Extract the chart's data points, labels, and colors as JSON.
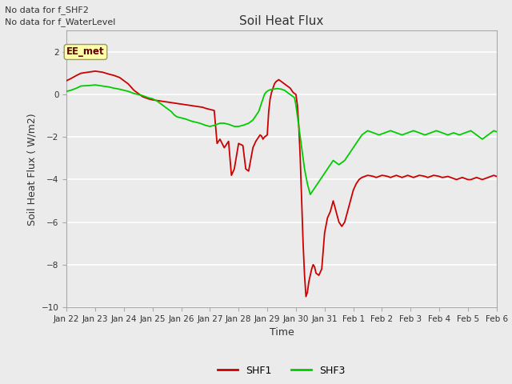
{
  "title": "Soil Heat Flux",
  "xlabel": "Time",
  "ylabel": "Soil Heat Flux ( W/m2)",
  "ylim": [
    -10,
    3
  ],
  "yticks": [
    -10,
    -8,
    -6,
    -4,
    -2,
    0,
    2
  ],
  "top_text": [
    "No data for f_SHF2",
    "No data for f_WaterLevel"
  ],
  "box_text": "EE_met",
  "bg_color": "#ebebeb",
  "shf1_color": "#cc0000",
  "shf3_color": "#00cc00",
  "xtick_labels": [
    "Jan 22",
    "Jan 23",
    "Jan 24",
    "Jan 25",
    "Jan 26",
    "Jan 27",
    "Jan 28",
    "Jan 29",
    "Jan 30",
    "Jan 31",
    "Feb 1",
    "Feb 2",
    "Feb 3",
    "Feb 4",
    "Feb 5",
    "Feb 6"
  ],
  "shf1_t": [
    0.0,
    0.15,
    0.35,
    0.5,
    0.75,
    1.0,
    1.25,
    1.5,
    1.65,
    1.85,
    2.0,
    2.15,
    2.25,
    2.35,
    2.5,
    2.65,
    2.75,
    2.85,
    3.0,
    3.15,
    3.25,
    3.35,
    3.5,
    3.65,
    3.75,
    3.85,
    4.0,
    4.15,
    4.25,
    4.35,
    4.5,
    4.65,
    4.75,
    4.85,
    5.0,
    5.15,
    5.25,
    5.35,
    5.5,
    5.65,
    5.75,
    5.85,
    6.0,
    6.15,
    6.25,
    6.35,
    6.5,
    6.6,
    6.7,
    6.75,
    6.8,
    6.85,
    6.9,
    6.95,
    7.0,
    7.05,
    7.1,
    7.15,
    7.2,
    7.25,
    7.3,
    7.35,
    7.4,
    7.45,
    7.5,
    7.55,
    7.6,
    7.65,
    7.7,
    7.75,
    7.8,
    7.85,
    7.9,
    7.95,
    8.0,
    8.05,
    8.1,
    8.15,
    8.2,
    8.25,
    8.3,
    8.35,
    8.4,
    8.45,
    8.5,
    8.55,
    8.6,
    8.65,
    8.7,
    8.8,
    8.9,
    9.0,
    9.1,
    9.2,
    9.3,
    9.4,
    9.5,
    9.6,
    9.7,
    9.8,
    9.9,
    10.0,
    10.1,
    10.2,
    10.3,
    10.4,
    10.5,
    10.6,
    10.7,
    10.8,
    10.9,
    11.0,
    11.1,
    11.2,
    11.3,
    11.4,
    11.5,
    11.6,
    11.7,
    11.8,
    11.9,
    12.0,
    12.1,
    12.2,
    12.3,
    12.4,
    12.5,
    12.6,
    12.7,
    12.8,
    12.9,
    13.0,
    13.1,
    13.2,
    13.3,
    13.4,
    13.5,
    13.6,
    13.7,
    13.8,
    13.9,
    14.0,
    14.1,
    14.2,
    14.3,
    14.4,
    14.5,
    14.6,
    14.7,
    14.8,
    14.9,
    15.0
  ],
  "shf1_y": [
    0.65,
    0.75,
    0.9,
    1.0,
    1.05,
    1.1,
    1.05,
    0.95,
    0.9,
    0.8,
    0.65,
    0.5,
    0.35,
    0.2,
    0.05,
    -0.1,
    -0.15,
    -0.2,
    -0.25,
    -0.28,
    -0.3,
    -0.32,
    -0.35,
    -0.38,
    -0.4,
    -0.42,
    -0.45,
    -0.48,
    -0.5,
    -0.52,
    -0.55,
    -0.58,
    -0.6,
    -0.65,
    -0.7,
    -0.75,
    -2.3,
    -2.1,
    -2.5,
    -2.2,
    -3.8,
    -3.5,
    -2.3,
    -2.4,
    -3.5,
    -3.6,
    -2.5,
    -2.2,
    -2.0,
    -1.9,
    -1.95,
    -2.1,
    -2.0,
    -1.95,
    -1.9,
    -0.8,
    -0.2,
    0.1,
    0.3,
    0.5,
    0.6,
    0.65,
    0.7,
    0.65,
    0.6,
    0.55,
    0.5,
    0.45,
    0.4,
    0.35,
    0.3,
    0.2,
    0.1,
    0.05,
    0.0,
    -0.5,
    -1.5,
    -3.0,
    -5.0,
    -7.0,
    -8.5,
    -9.5,
    -9.3,
    -8.8,
    -8.5,
    -8.2,
    -8.0,
    -8.1,
    -8.4,
    -8.5,
    -8.2,
    -6.5,
    -5.8,
    -5.5,
    -5.0,
    -5.5,
    -6.0,
    -6.2,
    -6.0,
    -5.5,
    -5.0,
    -4.5,
    -4.2,
    -4.0,
    -3.9,
    -3.85,
    -3.8,
    -3.82,
    -3.85,
    -3.9,
    -3.85,
    -3.8,
    -3.82,
    -3.85,
    -3.9,
    -3.85,
    -3.8,
    -3.85,
    -3.9,
    -3.85,
    -3.8,
    -3.85,
    -3.9,
    -3.85,
    -3.8,
    -3.82,
    -3.85,
    -3.9,
    -3.85,
    -3.8,
    -3.82,
    -3.85,
    -3.9,
    -3.88,
    -3.85,
    -3.9,
    -3.95,
    -4.0,
    -3.95,
    -3.9,
    -3.95,
    -4.0,
    -4.0,
    -3.95,
    -3.9,
    -3.95,
    -4.0,
    -3.95,
    -3.9,
    -3.85,
    -3.8,
    -3.85
  ],
  "shf3_t": [
    0.0,
    0.15,
    0.35,
    0.5,
    0.75,
    1.0,
    1.25,
    1.5,
    1.65,
    1.85,
    2.0,
    2.15,
    2.25,
    2.35,
    2.5,
    2.65,
    2.75,
    2.85,
    3.0,
    3.15,
    3.25,
    3.35,
    3.5,
    3.65,
    3.75,
    3.85,
    4.0,
    4.15,
    4.25,
    4.35,
    4.5,
    4.65,
    4.75,
    4.85,
    5.0,
    5.15,
    5.25,
    5.35,
    5.5,
    5.65,
    5.75,
    5.85,
    6.0,
    6.15,
    6.25,
    6.35,
    6.5,
    6.6,
    6.7,
    6.75,
    6.8,
    6.85,
    6.9,
    6.95,
    7.0,
    7.05,
    7.1,
    7.15,
    7.2,
    7.25,
    7.3,
    7.35,
    7.4,
    7.45,
    7.5,
    7.55,
    7.6,
    7.65,
    7.7,
    7.75,
    7.8,
    7.85,
    7.9,
    7.95,
    8.0,
    8.1,
    8.2,
    8.3,
    8.4,
    8.5,
    8.6,
    8.7,
    8.8,
    8.9,
    9.0,
    9.1,
    9.2,
    9.3,
    9.4,
    9.5,
    9.6,
    9.7,
    9.8,
    9.9,
    10.0,
    10.1,
    10.2,
    10.3,
    10.4,
    10.5,
    10.6,
    10.7,
    10.8,
    10.9,
    11.0,
    11.1,
    11.2,
    11.3,
    11.4,
    11.5,
    11.6,
    11.7,
    11.8,
    11.9,
    12.0,
    12.1,
    12.2,
    12.3,
    12.4,
    12.5,
    12.6,
    12.7,
    12.8,
    12.9,
    13.0,
    13.1,
    13.2,
    13.3,
    13.4,
    13.5,
    13.6,
    13.7,
    13.8,
    13.9,
    14.0,
    14.1,
    14.2,
    14.3,
    14.4,
    14.5,
    14.6,
    14.7,
    14.8,
    14.9,
    15.0
  ],
  "shf3_y": [
    0.15,
    0.2,
    0.3,
    0.4,
    0.42,
    0.45,
    0.4,
    0.35,
    0.3,
    0.25,
    0.2,
    0.15,
    0.1,
    0.05,
    0.0,
    -0.05,
    -0.1,
    -0.15,
    -0.2,
    -0.3,
    -0.4,
    -0.5,
    -0.65,
    -0.8,
    -0.95,
    -1.05,
    -1.1,
    -1.15,
    -1.2,
    -1.25,
    -1.3,
    -1.35,
    -1.4,
    -1.45,
    -1.5,
    -1.45,
    -1.4,
    -1.35,
    -1.35,
    -1.4,
    -1.45,
    -1.5,
    -1.5,
    -1.45,
    -1.4,
    -1.35,
    -1.2,
    -1.0,
    -0.8,
    -0.6,
    -0.4,
    -0.2,
    0.0,
    0.1,
    0.15,
    0.2,
    0.22,
    0.24,
    0.25,
    0.26,
    0.27,
    0.28,
    0.27,
    0.26,
    0.25,
    0.22,
    0.2,
    0.15,
    0.1,
    0.05,
    0.0,
    -0.05,
    -0.1,
    -0.15,
    -0.5,
    -1.5,
    -2.5,
    -3.5,
    -4.2,
    -4.7,
    -4.5,
    -4.3,
    -4.1,
    -3.9,
    -3.7,
    -3.5,
    -3.3,
    -3.1,
    -3.2,
    -3.3,
    -3.2,
    -3.1,
    -2.9,
    -2.7,
    -2.5,
    -2.3,
    -2.1,
    -1.9,
    -1.8,
    -1.7,
    -1.75,
    -1.8,
    -1.85,
    -1.9,
    -1.85,
    -1.8,
    -1.75,
    -1.7,
    -1.75,
    -1.8,
    -1.85,
    -1.9,
    -1.85,
    -1.8,
    -1.75,
    -1.7,
    -1.75,
    -1.8,
    -1.85,
    -1.9,
    -1.85,
    -1.8,
    -1.75,
    -1.7,
    -1.75,
    -1.8,
    -1.85,
    -1.9,
    -1.85,
    -1.8,
    -1.85,
    -1.9,
    -1.85,
    -1.8,
    -1.75,
    -1.7,
    -1.8,
    -1.9,
    -2.0,
    -2.1,
    -2.0,
    -1.9,
    -1.8,
    -1.7,
    -1.75
  ]
}
